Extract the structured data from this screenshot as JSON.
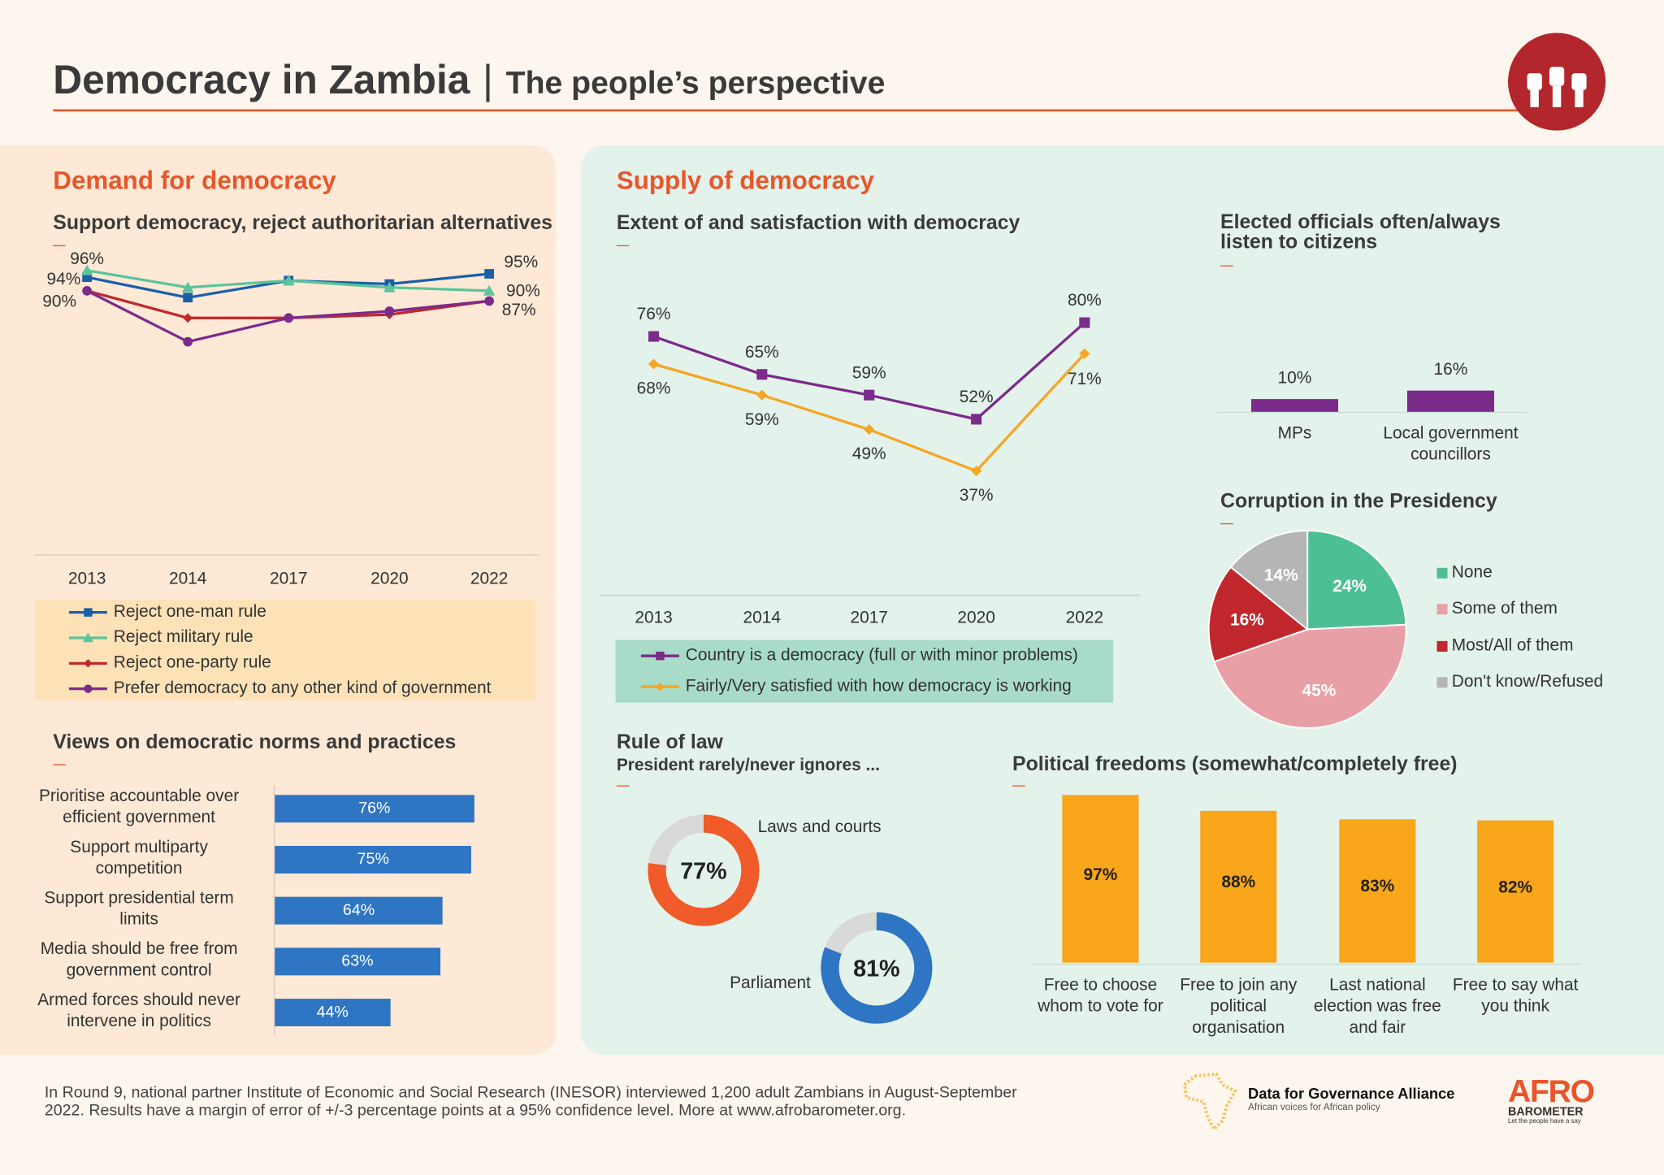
{
  "header": {
    "title": "Democracy in Zambia",
    "separator": "|",
    "subtitle": "The people’s perspective",
    "accent": "#e8562a",
    "logo_icon": "raised-fists-icon"
  },
  "demand": {
    "heading": "Demand for democracy",
    "support_title": "Support democracy, reject authoritarian alternatives",
    "norms_title": "Views on democratic norms and practices"
  },
  "supply": {
    "heading": "Supply of democracy",
    "extent_title": "Extent of and satisfaction with democracy",
    "officials_title_1": "Elected officials often/always",
    "officials_title_2": "listen to citizens",
    "corruption_title": "Corruption in the Presidency",
    "rule_title": "Rule of law",
    "rule_subtitle": "President rarely/never ignores ...",
    "freedoms_title": "Political freedoms (somewhat/completely free)"
  },
  "chart_data": [
    {
      "type": "line",
      "id": "support",
      "categories": [
        "2013",
        "2014",
        "2017",
        "2020",
        "2022"
      ],
      "series": [
        {
          "name": "Reject one-man rule",
          "values": [
            94,
            88,
            93,
            92,
            95
          ],
          "color": "#1a5fa8",
          "marker": "square"
        },
        {
          "name": "Reject military rule",
          "values": [
            96,
            91,
            93,
            91,
            90
          ],
          "color": "#5cc49a",
          "marker": "triangle"
        },
        {
          "name": "Reject one-party rule",
          "values": [
            90,
            82,
            82,
            83,
            87
          ],
          "color": "#c0282d",
          "marker": "diamond"
        },
        {
          "name": "Prefer democracy to any other kind of government",
          "values": [
            90,
            75,
            82,
            84,
            87
          ],
          "color": "#7b2b8a",
          "marker": "circle"
        }
      ],
      "data_labels": {
        "start": [
          "96%",
          "94%",
          "90%"
        ],
        "end": [
          "95%",
          "90%",
          "87%"
        ]
      },
      "legend": "bottom"
    },
    {
      "type": "bar",
      "id": "norms",
      "orientation": "horizontal",
      "categories": [
        [
          "Prioritise accountable over",
          "efficient government"
        ],
        [
          "Support multiparty",
          "competition"
        ],
        [
          "Support presidential term",
          "limits"
        ],
        [
          "Media should be free from",
          "government control"
        ],
        [
          "Armed forces should never",
          "intervene in politics"
        ]
      ],
      "values": [
        76,
        75,
        64,
        63,
        44
      ],
      "labels": [
        "76%",
        "75%",
        "64%",
        "63%",
        "44%"
      ],
      "color": "#2e75c4"
    },
    {
      "type": "line",
      "id": "extent",
      "categories": [
        "2013",
        "2014",
        "2017",
        "2020",
        "2022"
      ],
      "series": [
        {
          "name": "Country is a democracy (full or with minor problems)",
          "values": [
            76,
            65,
            59,
            52,
            80
          ],
          "labels": [
            "76%",
            "65%",
            "59%",
            "52%",
            "80%"
          ],
          "color": "#7b2b8a",
          "marker": "square"
        },
        {
          "name": "Fairly/Very satisfied with how democracy is working",
          "values": [
            68,
            59,
            49,
            37,
            71
          ],
          "labels": [
            "68%",
            "59%",
            "49%",
            "37%",
            "71%"
          ],
          "color": "#f5a623",
          "marker": "diamond"
        }
      ],
      "legend": "bottom"
    },
    {
      "type": "bar",
      "id": "officials",
      "categories": [
        "MPs",
        [
          "Local government",
          "councillors"
        ]
      ],
      "values": [
        10,
        16
      ],
      "labels": [
        "10%",
        "16%"
      ],
      "color": "#7b2b8a"
    },
    {
      "type": "pie",
      "id": "corruption",
      "slices": [
        {
          "name": "None",
          "value": 24,
          "label": "24%",
          "color": "#4cbf95"
        },
        {
          "name": "Some of them",
          "value": 45,
          "label": "45%",
          "color": "#e8a0a6"
        },
        {
          "name": "Most/All of them",
          "value": 16,
          "label": "16%",
          "color": "#c0282d"
        },
        {
          "name": "Don't know/Refused",
          "value": 14,
          "label": "14%",
          "color": "#b5b5b5"
        }
      ],
      "legend": "right"
    },
    {
      "type": "pie",
      "id": "rule_of_law",
      "donut": true,
      "items": [
        {
          "name": "Laws and courts",
          "value": 77,
          "label": "77%",
          "color": "#f15a29"
        },
        {
          "name": "Parliament",
          "value": 81,
          "label": "81%",
          "color": "#2e75c4"
        }
      ]
    },
    {
      "type": "bar",
      "id": "freedoms",
      "categories": [
        [
          "Free to choose",
          "whom to vote for"
        ],
        [
          "Free to join any",
          "political",
          "organisation"
        ],
        [
          "Last national",
          "election was free",
          "and fair"
        ],
        [
          "Free to say what",
          "you think"
        ]
      ],
      "values": [
        97,
        88,
        83,
        82
      ],
      "labels": [
        "97%",
        "88%",
        "83%",
        "82%"
      ],
      "color": "#f9a61a"
    }
  ],
  "footer": {
    "line1": "In Round 9, national partner Institute of Economic and Social Research (INESOR) interviewed 1,200 adult Zambians in August-September",
    "line2": "2022. Results have a margin of error of +/-3 percentage points at a 95% confidence level. More at www.afrobarometer.org.",
    "d4g_name": "Data for Governance Alliance",
    "d4g_tagline": "African voices for African policy",
    "afro_logo": "AFRO",
    "afro_sub": "BAROMETER",
    "afro_tag": "Let the people have a say"
  }
}
